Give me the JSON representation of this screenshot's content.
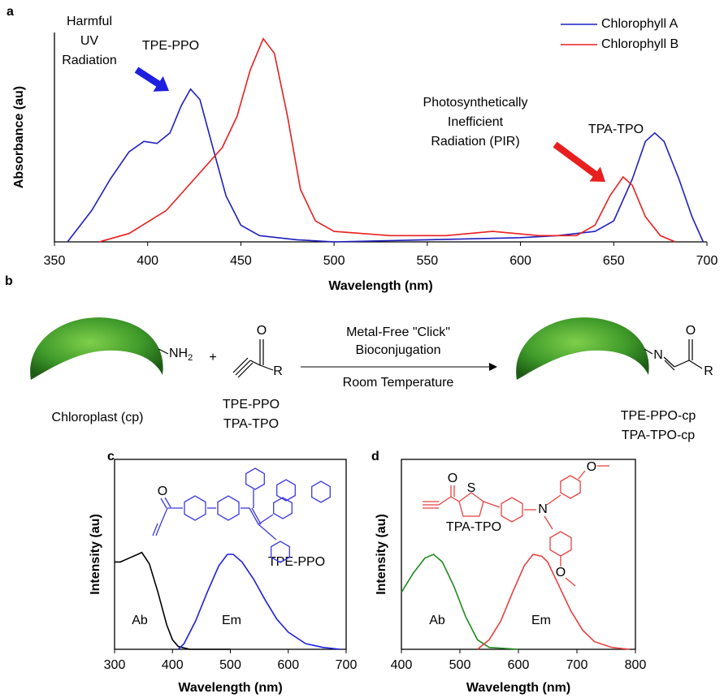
{
  "chart_data": [
    {
      "type": "line",
      "panel_label": "a",
      "xlabel": "Wavelength (nm)",
      "ylabel": "Absorbance (au)",
      "xlim": [
        350,
        700
      ],
      "xticks": [
        350,
        400,
        450,
        500,
        550,
        600,
        650,
        700
      ],
      "ylim": [
        0,
        1
      ],
      "legend": "upper right",
      "series": [
        {
          "name": "Chlorophyll A",
          "color": "#1f1fbf",
          "x": [
            357,
            370,
            380,
            390,
            398,
            405,
            412,
            418,
            423,
            428,
            435,
            442,
            450,
            460,
            480,
            500,
            550,
            600,
            620,
            640,
            650,
            660,
            667,
            672,
            677,
            685,
            692,
            698
          ],
          "values": [
            0,
            0.15,
            0.3,
            0.43,
            0.48,
            0.47,
            0.52,
            0.65,
            0.73,
            0.68,
            0.45,
            0.22,
            0.08,
            0.03,
            0.01,
            0,
            0.01,
            0.02,
            0.03,
            0.05,
            0.1,
            0.3,
            0.48,
            0.52,
            0.48,
            0.3,
            0.12,
            0
          ]
        },
        {
          "name": "Chlorophyll B",
          "color": "#e8201f",
          "x": [
            374,
            390,
            410,
            425,
            440,
            448,
            455,
            462,
            468,
            475,
            482,
            490,
            500,
            530,
            560,
            585,
            610,
            630,
            640,
            648,
            655,
            660,
            667,
            675,
            683
          ],
          "values": [
            0,
            0.04,
            0.15,
            0.3,
            0.45,
            0.6,
            0.82,
            0.97,
            0.9,
            0.6,
            0.25,
            0.1,
            0.05,
            0.03,
            0.03,
            0.05,
            0.03,
            0.03,
            0.08,
            0.22,
            0.31,
            0.27,
            0.12,
            0.03,
            0
          ]
        }
      ],
      "annotations": [
        {
          "lines": [
            "Harmful",
            "UV",
            "Radiation"
          ],
          "color": "#000000"
        },
        {
          "lines": [
            "TPE-PPO"
          ],
          "color": "#1f1fdf"
        },
        {
          "lines": [
            "Photosynthetically",
            "Inefficient",
            "Radiation (PIR)"
          ],
          "color": "#000000"
        },
        {
          "lines": [
            "TPA-TPO"
          ],
          "color": "#e8201f"
        }
      ]
    },
    {
      "type": "line",
      "panel_label": "c",
      "xlabel": "Wavelength (nm)",
      "ylabel": "Intensity (au)",
      "xlim": [
        300,
        700
      ],
      "xticks": [
        300,
        400,
        500,
        600,
        700
      ],
      "ylim": [
        0,
        1
      ],
      "series": [
        {
          "name": "Ab",
          "color": "#000000",
          "x": [
            300,
            310,
            325,
            340,
            347,
            360,
            375,
            390,
            400,
            410,
            430,
            500
          ],
          "values": [
            0.46,
            0.46,
            0.48,
            0.5,
            0.51,
            0.45,
            0.3,
            0.13,
            0.05,
            0.015,
            0,
            0
          ]
        },
        {
          "name": "Em",
          "color": "#1f1fdf",
          "x": [
            410,
            420,
            440,
            460,
            480,
            495,
            505,
            520,
            540,
            560,
            580,
            600,
            630,
            660,
            690
          ],
          "values": [
            0,
            0.03,
            0.15,
            0.3,
            0.44,
            0.5,
            0.5,
            0.46,
            0.37,
            0.26,
            0.16,
            0.09,
            0.03,
            0.01,
            0
          ]
        }
      ],
      "annotations": [
        {
          "lines": [
            "TPE-PPO"
          ],
          "color": "#1f1fdf"
        }
      ],
      "molecule": {
        "atoms": [
          "O"
        ],
        "color": "#3a3adf"
      }
    },
    {
      "type": "line",
      "panel_label": "d",
      "xlabel": "Wavelength (nm)",
      "ylabel": "Intensity (au)",
      "xlim": [
        400,
        800
      ],
      "xticks": [
        400,
        500,
        600,
        700,
        800
      ],
      "ylim": [
        0,
        1
      ],
      "series": [
        {
          "name": "Ab",
          "color": "#1f8a1f",
          "x": [
            400,
            420,
            440,
            455,
            470,
            490,
            510,
            530,
            550,
            600
          ],
          "values": [
            0.3,
            0.4,
            0.48,
            0.5,
            0.46,
            0.33,
            0.17,
            0.05,
            0.01,
            0
          ]
        },
        {
          "name": "Em",
          "color": "#e84040",
          "x": [
            530,
            550,
            570,
            590,
            610,
            625,
            640,
            650,
            670,
            690,
            710,
            730,
            760,
            790
          ],
          "values": [
            0,
            0.05,
            0.15,
            0.3,
            0.44,
            0.5,
            0.49,
            0.46,
            0.33,
            0.2,
            0.1,
            0.04,
            0.01,
            0
          ]
        }
      ],
      "annotations": [
        {
          "lines": [
            "TPA-TPO"
          ],
          "color": "#e84040"
        }
      ],
      "molecule": {
        "atoms": [
          "O",
          "S",
          "N",
          "O",
          "O"
        ],
        "color": "#e84040"
      }
    }
  ],
  "scheme": {
    "panel_label": "b",
    "chloroplast": "Chloroplast (cp)",
    "amine": [
      "NH",
      "2"
    ],
    "plus": "+",
    "reagent_atoms": [
      "O",
      "R"
    ],
    "reagents": [
      "TPE-PPO",
      "TPA-TPO"
    ],
    "conditions_above": [
      "Metal-Free \"Click\"",
      "Bioconjugation"
    ],
    "conditions_below": "Room Temperature",
    "product_atoms": [
      "N",
      "O",
      "R"
    ],
    "products": [
      "TPE-PPO-cp",
      "TPA-TPO-cp"
    ]
  }
}
